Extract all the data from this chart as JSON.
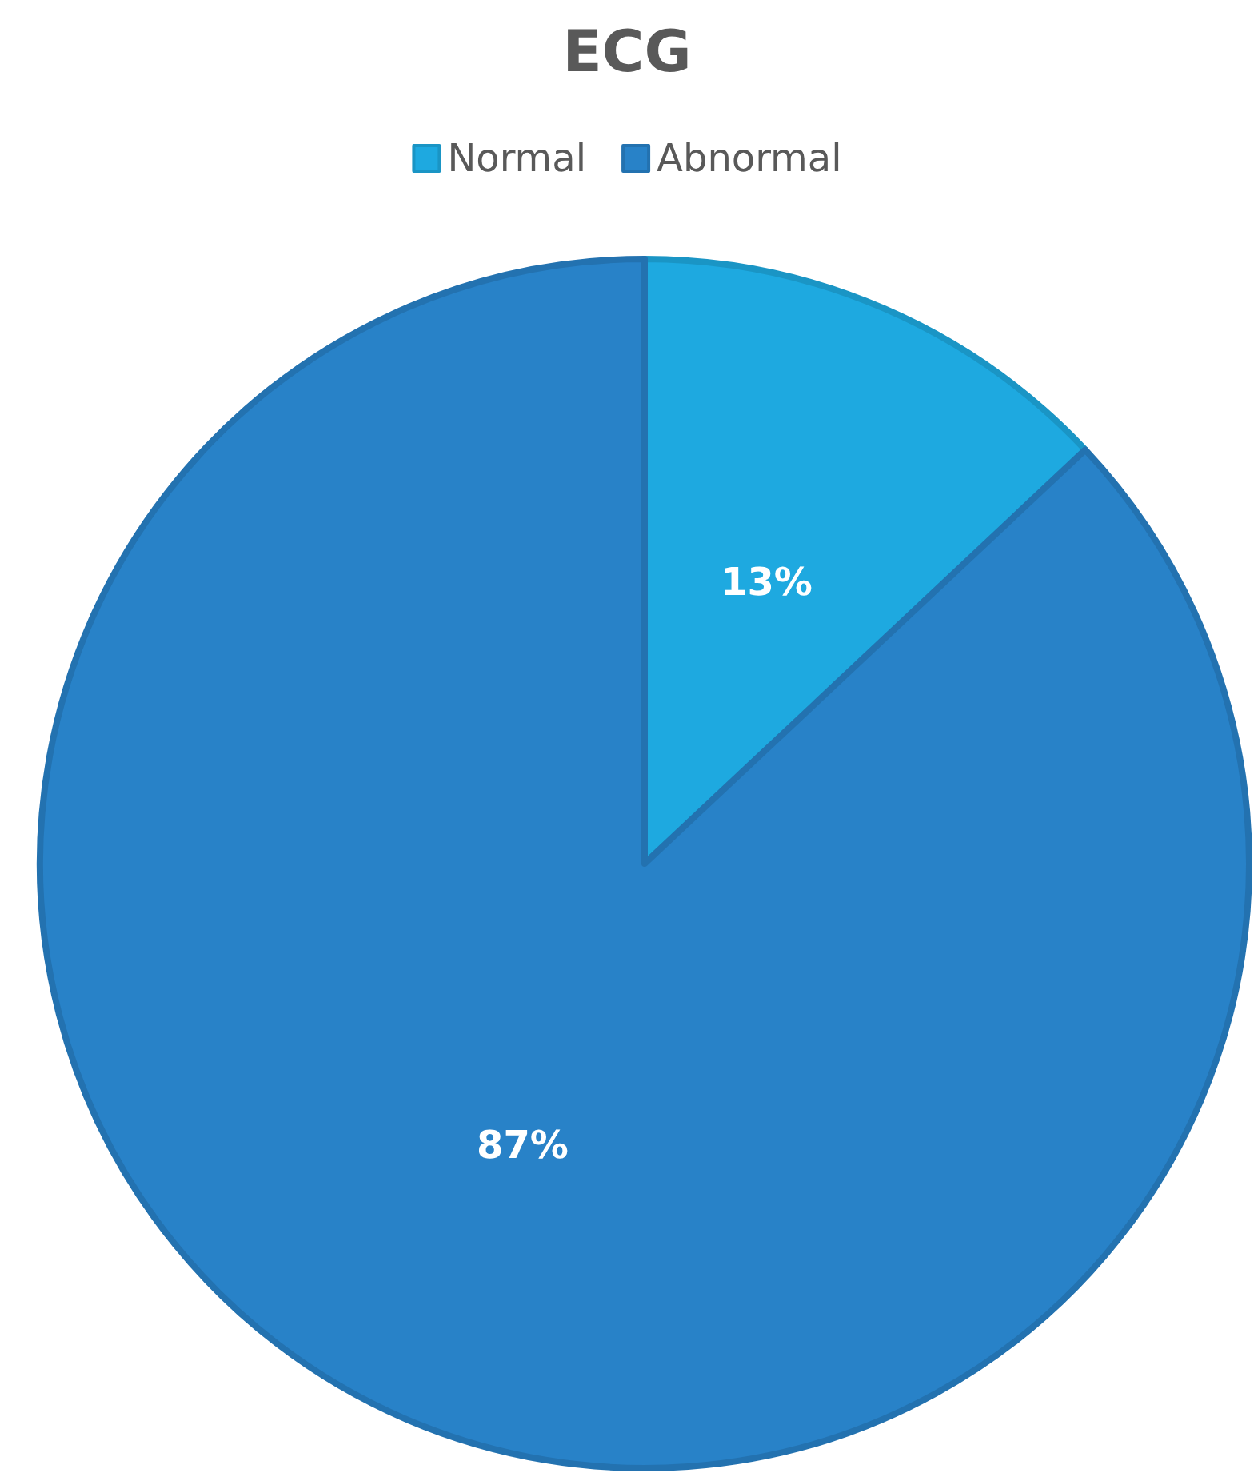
{
  "chart_data": {
    "type": "pie",
    "title": "ECG",
    "categories": [
      "Normal",
      "Abnormal"
    ],
    "values": [
      13,
      87
    ],
    "colors": [
      "#1ea9e0",
      "#2882c8"
    ],
    "value_labels": [
      "13%",
      "87%"
    ],
    "legend": "top"
  }
}
